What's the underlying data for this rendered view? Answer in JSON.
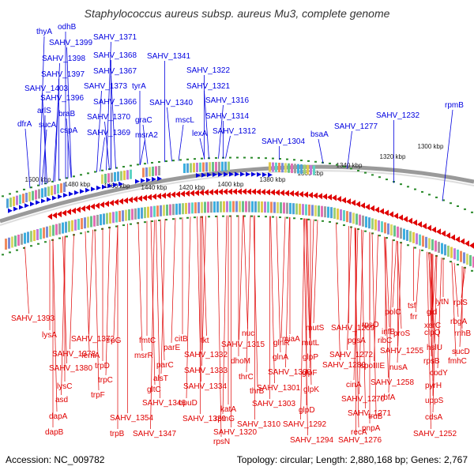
{
  "title": "Staphylococcus aureus subsp. aureus Mu3, complete genome",
  "footer": {
    "accession_label": "Accession:",
    "accession": "NC_009782",
    "stats_text": "Topology: circular; Length: 2,880,168 bp; Genes: 2,767"
  },
  "colors": {
    "forward_strand": "#0000e0",
    "reverse_strand": "#e00000",
    "backbone": "#9a9a9a",
    "ticks": "#2a8a2a",
    "title": "#333333"
  },
  "scale_ticks": [
    "1500 kbp",
    "1480 kbp",
    "1460 kbp",
    "1440 kbp",
    "1420 kbp",
    "1400 kbp",
    "1380 kbp",
    "1360 kbp",
    "1340 kbp",
    "1320 kbp",
    "1300 kbp"
  ],
  "forward_genes": [
    "thyA",
    "odhB",
    "SAHV_1399",
    "SAHV_1398",
    "SAHV_1397",
    "SAHV_1403",
    "SAHV_1396",
    "arlS",
    "braB",
    "sucA",
    "cspA",
    "dfrA",
    "SAHV_1371",
    "SAHV_1368",
    "SAHV_1367",
    "SAHV_1373",
    "SAHV_1366",
    "SAHV_1370",
    "SAHV_1369",
    "tyrA",
    "graC",
    "msrA2",
    "SAHV_1341",
    "SAHV_1340",
    "mscL",
    "SAHV_1322",
    "SAHV_1321",
    "SAHV_1316",
    "SAHV_1314",
    "lexA",
    "SAHV_1312",
    "SAHV_1304",
    "bsaA",
    "SAHV_1277",
    "SAHV_1232",
    "rpmB"
  ],
  "reverse_genes": [
    "SAHV_1393",
    "lysA",
    "SAHV_1378",
    "SAHV_1380",
    "lysC",
    "asd",
    "dapA",
    "dapB",
    "SAHV_1372",
    "femA",
    "trpD",
    "trpC",
    "trpF",
    "trpB",
    "trpG",
    "msrR",
    "fmtC",
    "alsT",
    "gltC",
    "SAHV_1354",
    "SAHV_1347",
    "SAHV_1346",
    "citB",
    "parE",
    "parC",
    "SAHV_1339",
    "opuD",
    "tkt",
    "SAHV_1332",
    "SAHV_1333",
    "SAHV_1334",
    "katA",
    "rpmG",
    "rpsN",
    "SAHV_1320",
    "SAHV_1315",
    "nuc",
    "dhoM",
    "thrC",
    "thrB",
    "SAHV_1310",
    "glnR",
    "glnA",
    "miaA",
    "SAHV_1300",
    "SAHV_1301",
    "SAHV_1303",
    "mutS",
    "mutL",
    "glpP",
    "glpF",
    "glpK",
    "glpD",
    "SAHV_1292",
    "SAHV_1294",
    "SAHV_1269",
    "SAHV_1272",
    "SAHV_1280",
    "pgsA",
    "cinA",
    "recA",
    "SAHV_1276",
    "SAHV_1270",
    "SAHV_1271",
    "rpsO",
    "spoIIIE",
    "truB",
    "pnpA",
    "rbfA",
    "infB",
    "ribC",
    "polC",
    "proS",
    "SAHV_1255",
    "nusA",
    "SAHV_1258",
    "tsf",
    "frr",
    "gid",
    "clpQ",
    "xerC",
    "hslU",
    "rpsB",
    "codY",
    "pyrH",
    "uppS",
    "cdsA",
    "SAHV_1252",
    "lytN",
    "rplS",
    "rbgA",
    "rnhB",
    "sucD",
    "fmhC"
  ]
}
